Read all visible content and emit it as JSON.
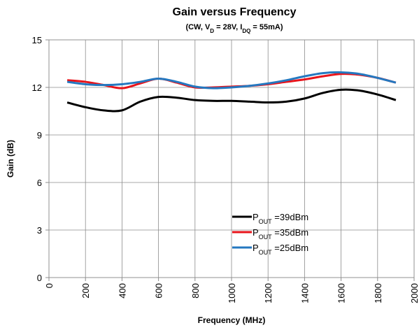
{
  "chart_data": {
    "type": "line",
    "title": "Gain versus Frequency",
    "subtitle_parts": [
      {
        "text": "(CW, V"
      },
      {
        "text": "D",
        "sub": true
      },
      {
        "text": " = 28V, I"
      },
      {
        "text": "DQ",
        "sub": true
      },
      {
        "text": " = 55mA)"
      }
    ],
    "x_label": "Frequency (MHz)",
    "y_label": "Gain (dB)",
    "x": [
      100,
      200,
      300,
      400,
      500,
      600,
      700,
      800,
      900,
      1000,
      1100,
      1200,
      1300,
      1400,
      1500,
      1600,
      1700,
      1800,
      1900
    ],
    "series": [
      {
        "name": [
          "P",
          "OUT",
          " =39dBm"
        ],
        "color": "#000000",
        "values": [
          11.05,
          10.75,
          10.55,
          10.55,
          11.1,
          11.4,
          11.35,
          11.2,
          11.15,
          11.15,
          11.1,
          11.05,
          11.1,
          11.3,
          11.65,
          11.85,
          11.8,
          11.55,
          11.2
        ]
      },
      {
        "name": [
          "P",
          "OUT",
          " =35dBm"
        ],
        "color": "#e8141b",
        "values": [
          12.45,
          12.35,
          12.15,
          11.95,
          12.25,
          12.55,
          12.3,
          12.0,
          12.0,
          12.05,
          12.1,
          12.2,
          12.35,
          12.5,
          12.7,
          12.85,
          12.8,
          12.6,
          12.3
        ]
      },
      {
        "name": [
          "P",
          "OUT",
          " =25dBm"
        ],
        "color": "#2478c0",
        "values": [
          12.35,
          12.2,
          12.15,
          12.2,
          12.35,
          12.55,
          12.35,
          12.05,
          11.95,
          12.0,
          12.1,
          12.25,
          12.45,
          12.7,
          12.9,
          12.95,
          12.85,
          12.6,
          12.3
        ]
      }
    ],
    "xlim": [
      0,
      2000
    ],
    "xticks": [
      0,
      200,
      400,
      600,
      800,
      1000,
      1200,
      1400,
      1600,
      1800,
      2000
    ],
    "ylim": [
      0,
      15
    ],
    "yticks": [
      0,
      3,
      6,
      9,
      12,
      15
    ],
    "grid": true
  }
}
